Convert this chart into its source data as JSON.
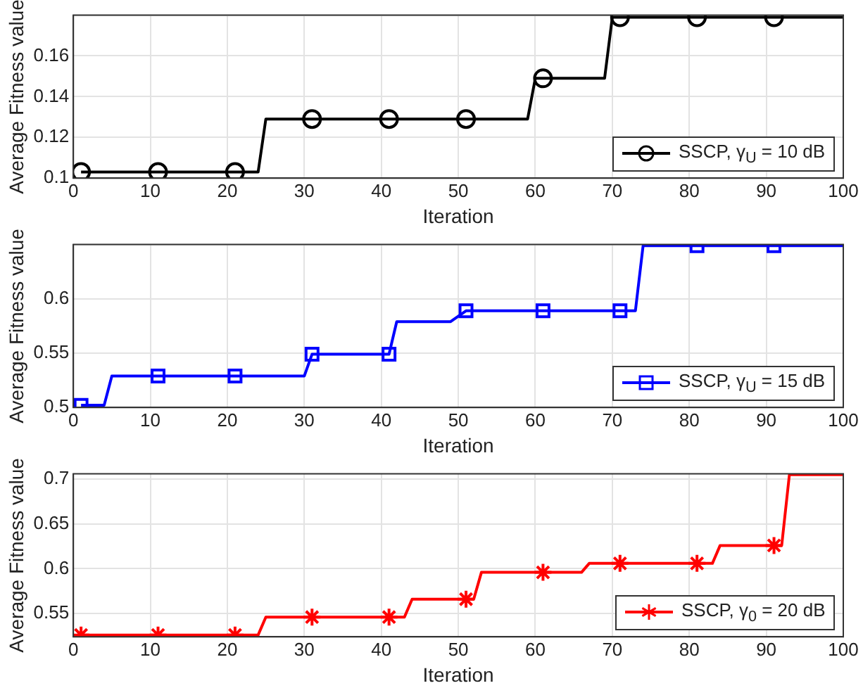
{
  "chart_data": [
    {
      "type": "line",
      "xlabel": "Iteration",
      "ylabel": "Average Fitness value",
      "xlim": [
        0,
        100
      ],
      "xticks": [
        0,
        10,
        20,
        30,
        40,
        50,
        60,
        70,
        80,
        90,
        100
      ],
      "ylim": [
        0.1,
        0.18
      ],
      "yticks": [
        0.1,
        0.12,
        0.14,
        0.16,
        {
          "value": 0.18,
          "label": null
        }
      ],
      "grid": true,
      "legend": "bottom right",
      "marker": "circle",
      "series": [
        {
          "name": "SSCP, γ$_{U}$ = 10 dB",
          "color": "#000000",
          "marker": "none",
          "x": [
            1,
            24,
            25,
            59,
            60,
            69,
            70,
            100
          ],
          "values": [
            0.103,
            0.103,
            0.129,
            0.129,
            0.149,
            0.149,
            0.179,
            0.179
          ]
        },
        {
          "color": "#000000",
          "type": "scatter",
          "x": [
            1,
            11,
            21,
            31,
            41,
            51,
            61,
            71,
            81,
            91
          ],
          "values": [
            0.103,
            0.103,
            0.103,
            0.129,
            0.129,
            0.129,
            0.149,
            0.179,
            0.179,
            0.179
          ]
        }
      ]
    },
    {
      "type": "line",
      "xlabel": "Iteration",
      "ylabel": "Average Fitness value",
      "xlim": [
        0,
        100
      ],
      "xticks": [
        0,
        10,
        20,
        30,
        40,
        50,
        60,
        70,
        80,
        90,
        100
      ],
      "ylim": [
        0.5,
        0.65
      ],
      "yticks": [
        0.5,
        0.55,
        0.6,
        {
          "value": 0.65,
          "label": null
        }
      ],
      "grid": true,
      "legend": "bottom right",
      "marker": "square",
      "series": [
        {
          "name": "SSCP, γ$_{U}$ = 15 dB",
          "color": "#0000ff",
          "marker": "none",
          "x": [
            1,
            4,
            5,
            30,
            31,
            41,
            42,
            49,
            51,
            73,
            74,
            100
          ],
          "values": [
            0.502,
            0.502,
            0.529,
            0.529,
            0.549,
            0.549,
            0.579,
            0.579,
            0.589,
            0.589,
            0.649,
            0.649
          ]
        },
        {
          "color": "#0000ff",
          "type": "scatter",
          "x": [
            1,
            11,
            21,
            31,
            41,
            51,
            61,
            71,
            81,
            91
          ],
          "values": [
            0.502,
            0.529,
            0.529,
            0.549,
            0.549,
            0.589,
            0.589,
            0.589,
            0.649,
            0.649
          ]
        }
      ]
    },
    {
      "type": "line",
      "xlabel": "Iteration",
      "ylabel": "Average Fitness value",
      "xlim": [
        0,
        100
      ],
      "xticks": [
        0,
        10,
        20,
        30,
        40,
        50,
        60,
        70,
        80,
        90,
        100
      ],
      "ylim": [
        0.524,
        0.706
      ],
      "yticks": [
        0.55,
        0.6,
        0.65,
        0.7
      ],
      "grid": true,
      "legend": "bottom right",
      "marker": "cross",
      "series": [
        {
          "name": "SSCP, γ$_{0}$ = 20 dB",
          "color": "#ff0000",
          "marker": "none",
          "x": [
            1,
            24,
            25,
            43,
            44,
            52,
            53,
            66,
            67,
            83,
            84,
            92,
            93,
            100
          ],
          "values": [
            0.526,
            0.526,
            0.546,
            0.546,
            0.566,
            0.566,
            0.596,
            0.596,
            0.606,
            0.606,
            0.626,
            0.626,
            0.705,
            0.705
          ]
        },
        {
          "color": "#ff0000",
          "type": "scatter",
          "x": [
            1,
            11,
            21,
            31,
            41,
            51,
            61,
            71,
            81,
            91
          ],
          "values": [
            0.526,
            0.526,
            0.526,
            0.546,
            0.546,
            0.566,
            0.596,
            0.606,
            0.606,
            0.626
          ]
        }
      ]
    }
  ]
}
